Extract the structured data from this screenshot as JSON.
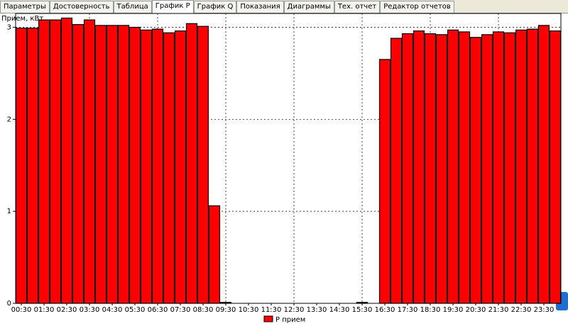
{
  "tabs": [
    "Параметры",
    "Достоверность",
    "Таблица",
    "График P",
    "График Q",
    "Показания",
    "Диаграммы",
    "Тех. отчет",
    "Редактор отчетов"
  ],
  "active_tab": 3,
  "chart_data": {
    "type": "bar",
    "y_label": "Прием, кВт",
    "categories": [
      "00:30",
      null,
      "01:30",
      null,
      "02:30",
      null,
      "03:30",
      null,
      "04:30",
      null,
      "05:30",
      null,
      "06:30",
      null,
      "07:30",
      null,
      "08:30",
      null,
      "09:30",
      null,
      "10:30",
      null,
      "11:30",
      null,
      "12:30",
      null,
      "13:30",
      null,
      "14:30",
      null,
      "15:30",
      null,
      "16:30",
      null,
      "17:30",
      null,
      "18:30",
      null,
      "19:30",
      null,
      "20:30",
      null,
      "21:30",
      null,
      "22:30",
      null,
      "23:30",
      null
    ],
    "series": [
      {
        "name": "P прием",
        "color": "#ff0000",
        "values": [
          2.99,
          2.99,
          3.08,
          3.08,
          3.1,
          3.03,
          3.08,
          3.02,
          3.02,
          3.02,
          3.0,
          2.97,
          2.98,
          2.94,
          2.96,
          3.04,
          3.01,
          1.06,
          0.01,
          0,
          0,
          0,
          0,
          0,
          0,
          0,
          0,
          0,
          0,
          0,
          0.01,
          0,
          2.65,
          2.88,
          2.93,
          2.96,
          2.93,
          2.92,
          2.97,
          2.95,
          2.89,
          2.92,
          2.95,
          2.94,
          2.97,
          2.98,
          3.02,
          2.96
        ]
      }
    ],
    "ylim": [
      0,
      3.15
    ],
    "yticks": [
      0,
      1,
      2,
      3
    ],
    "grid": true
  }
}
